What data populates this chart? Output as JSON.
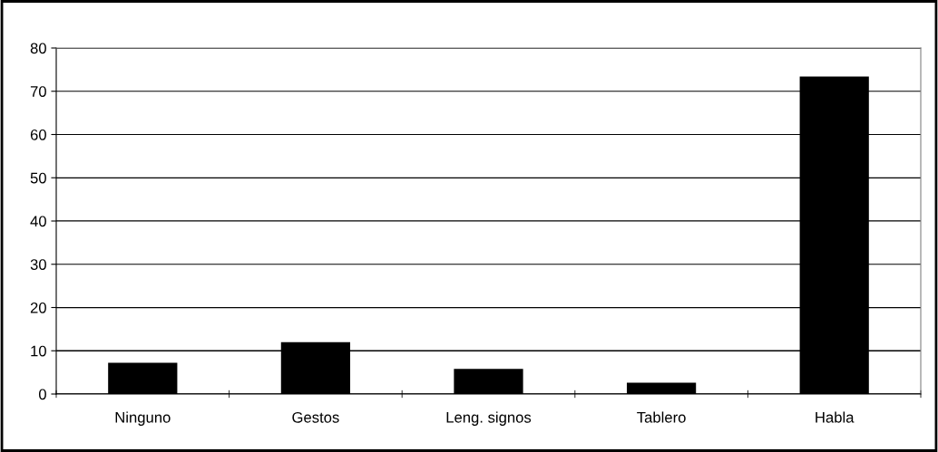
{
  "chart_data": {
    "type": "bar",
    "categories": [
      "Ninguno",
      "Gestos",
      "Leng. signos",
      "Tablero",
      "Habla"
    ],
    "values": [
      7.2,
      12.0,
      5.8,
      2.6,
      73.4
    ],
    "color": "#000000",
    "ylim": [
      0,
      80
    ],
    "yticks": [
      0,
      10,
      20,
      30,
      40,
      50,
      60,
      70,
      80
    ],
    "grid": "y",
    "legend": false
  }
}
